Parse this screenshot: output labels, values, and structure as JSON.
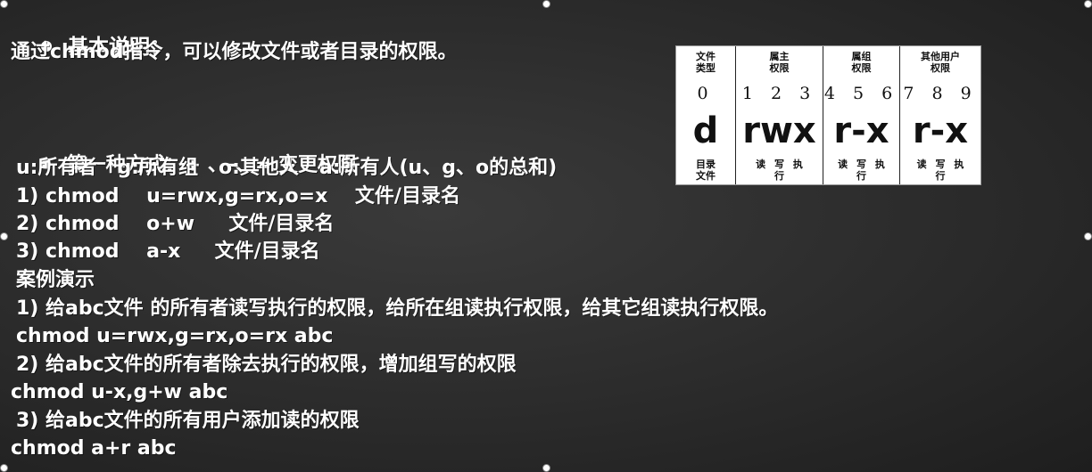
{
  "section1": {
    "title": "基本说明：",
    "desc": "通过chmod指令，可以修改文件或者目录的权限。"
  },
  "section2": {
    "title": "第一种方式：+ 、-、= 变更权限",
    "legend": "u:所有者   g:所有组   o:其他人   a:所有人(u、g、o的总和)",
    "syntax": [
      "1) chmod    u=rwx,g=rx,o=x    文件/目录名",
      "2) chmod    o+w     文件/目录名",
      "3) chmod    a-x     文件/目录名"
    ],
    "case_title": "案例演示",
    "cases": [
      "1) 给abc文件 的所有者读写执行的权限，给所在组读执行权限，给其它组读执行权限。",
      "chmod u=rwx,g=rx,o=rx abc",
      "2) 给abc文件的所有者除去执行的权限，增加组写的权限",
      "chmod u-x,g+w abc",
      "3) 给abc文件的所有用户添加读的权限",
      "chmod a+r abc"
    ]
  },
  "perm_table": {
    "columns": [
      {
        "header": "文件\n类型",
        "nums": "0",
        "big": "d",
        "foot": "目录\n文件"
      },
      {
        "header": "属主\n权限",
        "nums": "1 2 3",
        "big": "rwx",
        "foot": "读 写 执\n行"
      },
      {
        "header": "属组\n权限",
        "nums": "4 5 6",
        "big": "r-x",
        "foot": "读 写 执\n行"
      },
      {
        "header": "其他用户\n权限",
        "nums": "7 8 9",
        "big": "r-x",
        "foot": "读 写 执\n行"
      }
    ]
  }
}
